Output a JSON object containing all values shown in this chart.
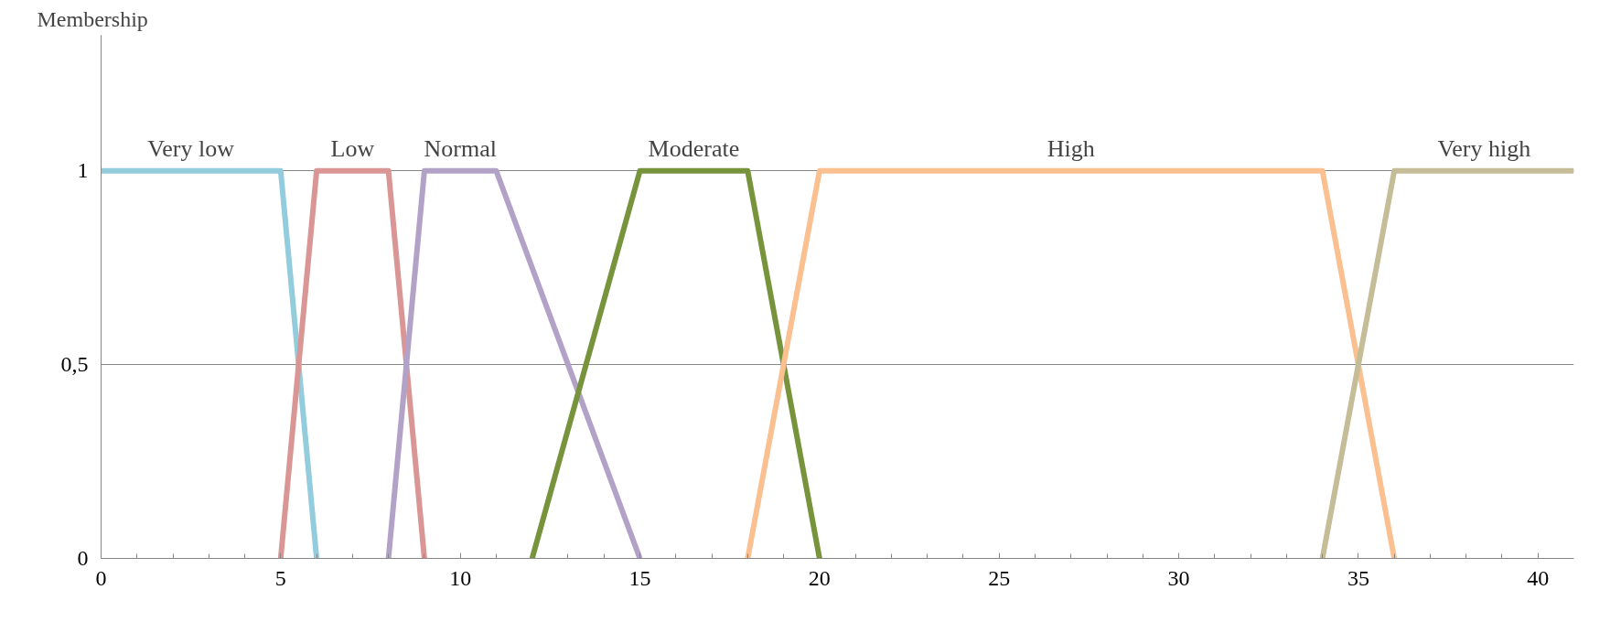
{
  "chart_data": {
    "type": "line",
    "ylabel": "Membership",
    "xlim": [
      0,
      41
    ],
    "ylim": [
      0,
      1.35
    ],
    "xticks": [
      0,
      5,
      10,
      15,
      20,
      25,
      30,
      35,
      40
    ],
    "yticks": [
      0,
      {
        "value": 0.5,
        "label": "0,5"
      },
      1
    ],
    "grid": "y",
    "marker": "none",
    "line_style": "solid",
    "series": [
      {
        "name": "Very low",
        "color": "#93cddd",
        "x": [
          0,
          5,
          6
        ],
        "values": [
          1,
          1,
          0
        ]
      },
      {
        "name": "Low",
        "color": "#d99694",
        "x": [
          5,
          6,
          8,
          9
        ],
        "values": [
          0,
          1,
          1,
          0
        ]
      },
      {
        "name": "Normal",
        "color": "#b3a2c7",
        "x": [
          8,
          9,
          11,
          15
        ],
        "values": [
          0,
          1,
          1,
          0
        ]
      },
      {
        "name": "Moderate",
        "color": "#77933c",
        "x": [
          12,
          15,
          18,
          20
        ],
        "values": [
          0,
          1,
          1,
          0
        ]
      },
      {
        "name": "High",
        "color": "#fac090",
        "x": [
          18,
          20,
          34,
          36
        ],
        "values": [
          0,
          1,
          1,
          0
        ]
      },
      {
        "name": "Very high",
        "color": "#c4bd97",
        "x": [
          34,
          36,
          41
        ],
        "values": [
          0,
          1,
          1
        ]
      }
    ]
  }
}
